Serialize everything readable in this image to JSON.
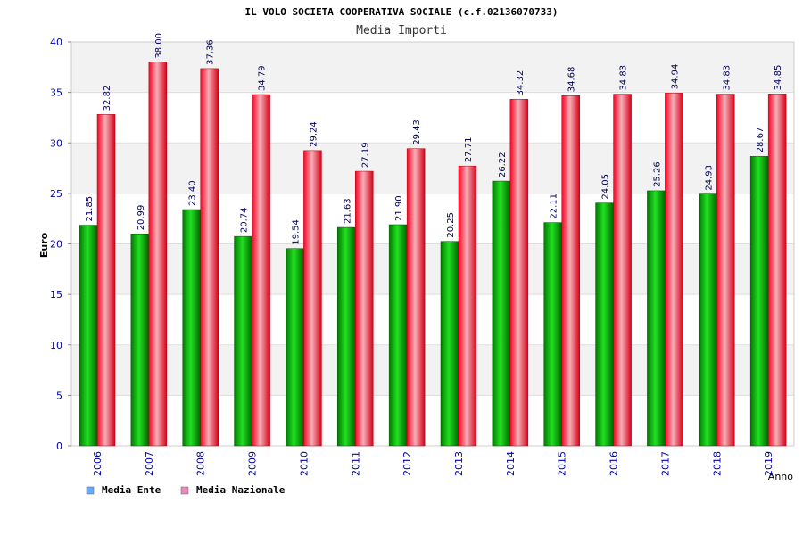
{
  "chart_data": {
    "type": "bar",
    "title": "IL VOLO SOCIETA COOPERATIVA SOCIALE (c.f.02136070733)",
    "subtitle": "Media Importi",
    "xlabel": "Anno",
    "ylabel": "Euro",
    "ylim": [
      0,
      40
    ],
    "yticks": [
      0,
      5,
      10,
      15,
      20,
      25,
      30,
      35,
      40
    ],
    "grid": true,
    "legend_position": "bottom-left",
    "categories": [
      "2006",
      "2007",
      "2008",
      "2009",
      "2010",
      "2011",
      "2012",
      "2013",
      "2014",
      "2015",
      "2016",
      "2017",
      "2018",
      "2019"
    ],
    "series": [
      {
        "name": "Media Ente",
        "legend_color": "#66aaff",
        "bar_color": "#00c000",
        "values": [
          21.85,
          20.99,
          23.4,
          20.74,
          19.54,
          21.63,
          21.9,
          20.25,
          26.22,
          22.11,
          24.05,
          25.26,
          24.93,
          28.67
        ],
        "labels": [
          "21.85",
          "20.99",
          "23.40",
          "20.74",
          "19.54",
          "21.63",
          "21.90",
          "20.25",
          "26.22",
          "22.11",
          "24.05",
          "25.26",
          "24.93",
          "28.67"
        ]
      },
      {
        "name": "Media Nazionale",
        "legend_color": "#ee88bb",
        "bar_color": "#e8001c",
        "values": [
          32.82,
          38.0,
          37.36,
          34.79,
          29.24,
          27.19,
          29.43,
          27.71,
          34.32,
          34.68,
          34.83,
          34.94,
          34.83,
          34.85
        ],
        "labels": [
          "32.82",
          "38.00",
          "37.36",
          "34.79",
          "29.24",
          "27.19",
          "29.43",
          "27.71",
          "34.32",
          "34.68",
          "34.83",
          "34.94",
          "34.83",
          "34.85"
        ]
      }
    ]
  },
  "colors": {
    "band": "#f2f2f2",
    "grid": "#dddddd",
    "axis_text": "#0000aa",
    "title_text": "#000000",
    "subtitle_text": "#333333",
    "label_text": "#000055"
  }
}
